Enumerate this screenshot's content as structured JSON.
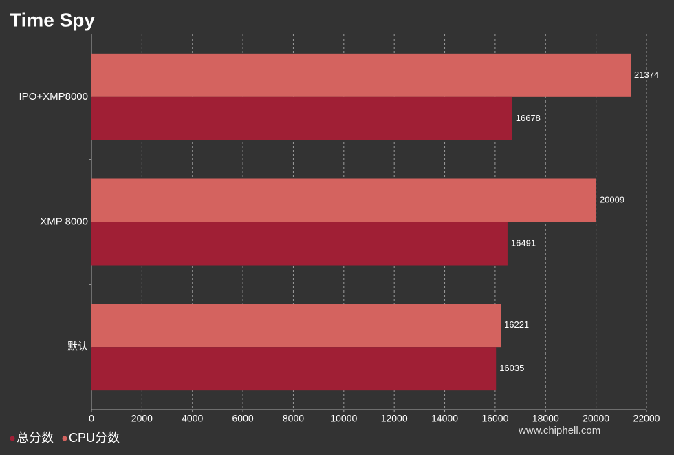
{
  "chart_data": {
    "type": "hbar",
    "title": "Time Spy",
    "categories": [
      "IPO+XMP8000",
      "XMP 8000",
      "默认"
    ],
    "series": [
      {
        "name": "总分数",
        "color": "#a01f35",
        "values": [
          16678,
          16491,
          16035
        ]
      },
      {
        "name": "CPU分数",
        "color": "#d4635f",
        "values": [
          21374,
          20009,
          16221
        ]
      }
    ],
    "xlim": [
      0,
      22000
    ],
    "xticks": [
      0,
      2000,
      4000,
      6000,
      8000,
      10000,
      12000,
      14000,
      16000,
      18000,
      20000,
      22000
    ],
    "grid": true,
    "legend": "bottom-left",
    "watermark": "www.chiphell.com"
  }
}
